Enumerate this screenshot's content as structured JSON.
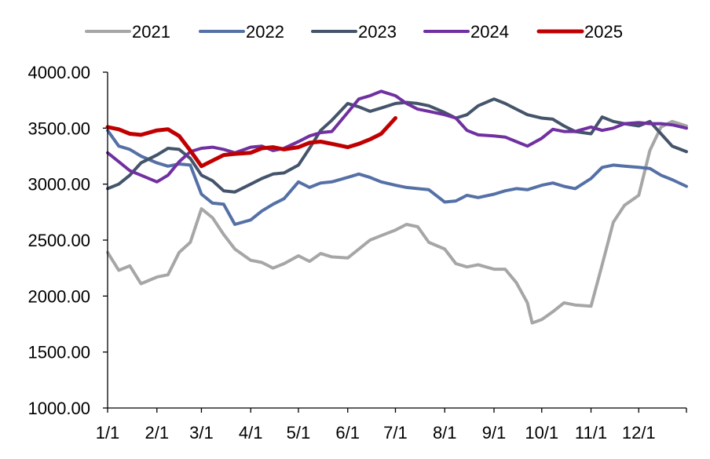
{
  "chart_data": {
    "type": "line",
    "title": "",
    "xlabel": "",
    "ylabel": "",
    "ylim": [
      1000,
      4000
    ],
    "yticks": [
      "1000.00",
      "1500.00",
      "2000.00",
      "2500.00",
      "3000.00",
      "3500.00",
      "4000.00"
    ],
    "xticks": [
      "1/1",
      "2/1",
      "3/1",
      "4/1",
      "5/1",
      "6/1",
      "7/1",
      "8/1",
      "9/1",
      "10/1",
      "11/1",
      "12/1"
    ],
    "grid": false,
    "legend_position": "top",
    "series": [
      {
        "name": "2021",
        "color": "#a6a6a6",
        "x": [
          "1/1",
          "1/8",
          "1/15",
          "1/22",
          "2/1",
          "2/8",
          "2/15",
          "2/22",
          "3/1",
          "3/8",
          "3/15",
          "3/22",
          "4/1",
          "4/8",
          "4/15",
          "4/22",
          "5/1",
          "5/8",
          "5/15",
          "5/22",
          "6/1",
          "6/8",
          "6/15",
          "6/22",
          "7/1",
          "7/8",
          "7/15",
          "7/22",
          "8/1",
          "8/8",
          "8/15",
          "8/22",
          "9/1",
          "9/8",
          "9/15",
          "9/22",
          "9/25",
          "10/1",
          "10/8",
          "10/15",
          "10/22",
          "11/1",
          "11/8",
          "11/15",
          "11/22",
          "12/1",
          "12/8",
          "12/15",
          "12/22",
          "12/31"
        ],
        "values": [
          2390,
          2230,
          2270,
          2110,
          2170,
          2190,
          2390,
          2480,
          2780,
          2700,
          2550,
          2420,
          2320,
          2300,
          2250,
          2290,
          2360,
          2310,
          2380,
          2350,
          2340,
          2420,
          2500,
          2540,
          2590,
          2640,
          2620,
          2480,
          2420,
          2290,
          2260,
          2280,
          2240,
          2240,
          2120,
          1940,
          1760,
          1790,
          1860,
          1940,
          1920,
          1910,
          2280,
          2660,
          2810,
          2900,
          3300,
          3510,
          3560,
          3520
        ]
      },
      {
        "name": "2022",
        "color": "#5470a6",
        "x": [
          "1/1",
          "1/8",
          "1/15",
          "1/22",
          "2/1",
          "2/8",
          "2/15",
          "2/22",
          "3/1",
          "3/8",
          "3/15",
          "3/22",
          "4/1",
          "4/8",
          "4/15",
          "4/22",
          "5/1",
          "5/8",
          "5/15",
          "5/22",
          "6/1",
          "6/8",
          "6/15",
          "6/22",
          "7/1",
          "7/8",
          "7/15",
          "7/22",
          "8/1",
          "8/8",
          "8/15",
          "8/22",
          "9/1",
          "9/8",
          "9/15",
          "9/22",
          "10/1",
          "10/8",
          "10/15",
          "10/22",
          "11/1",
          "11/8",
          "11/15",
          "11/22",
          "12/1",
          "12/8",
          "12/15",
          "12/22",
          "12/31"
        ],
        "values": [
          3480,
          3340,
          3310,
          3250,
          3190,
          3160,
          3180,
          3170,
          2910,
          2830,
          2820,
          2640,
          2680,
          2760,
          2820,
          2870,
          3020,
          2970,
          3010,
          3020,
          3060,
          3090,
          3060,
          3020,
          2990,
          2970,
          2960,
          2950,
          2840,
          2850,
          2900,
          2880,
          2910,
          2940,
          2960,
          2950,
          2990,
          3010,
          2980,
          2960,
          3050,
          3150,
          3170,
          3160,
          3150,
          3140,
          3080,
          3040,
          2980
        ]
      },
      {
        "name": "2023",
        "color": "#44546a",
        "x": [
          "1/1",
          "1/8",
          "1/15",
          "1/22",
          "2/1",
          "2/8",
          "2/15",
          "2/22",
          "3/1",
          "3/8",
          "3/15",
          "3/22",
          "4/1",
          "4/8",
          "4/15",
          "4/22",
          "5/1",
          "5/8",
          "5/15",
          "5/22",
          "6/1",
          "6/8",
          "6/15",
          "6/22",
          "7/1",
          "7/8",
          "7/15",
          "7/22",
          "8/1",
          "8/8",
          "8/15",
          "8/22",
          "9/1",
          "9/8",
          "9/15",
          "9/22",
          "10/1",
          "10/8",
          "10/15",
          "10/22",
          "11/1",
          "11/8",
          "11/15",
          "11/22",
          "12/1",
          "12/8",
          "12/15",
          "12/22",
          "12/31"
        ],
        "values": [
          2960,
          3000,
          3080,
          3190,
          3260,
          3320,
          3310,
          3230,
          3080,
          3030,
          2940,
          2930,
          3000,
          3050,
          3090,
          3100,
          3170,
          3320,
          3480,
          3570,
          3720,
          3690,
          3650,
          3680,
          3720,
          3730,
          3720,
          3700,
          3640,
          3590,
          3620,
          3700,
          3760,
          3720,
          3670,
          3620,
          3590,
          3580,
          3520,
          3470,
          3450,
          3600,
          3560,
          3540,
          3520,
          3560,
          3450,
          3340,
          3290
        ]
      },
      {
        "name": "2024",
        "color": "#7030a0",
        "x": [
          "1/1",
          "1/8",
          "1/15",
          "1/22",
          "2/1",
          "2/8",
          "2/15",
          "2/22",
          "3/1",
          "3/8",
          "3/15",
          "3/22",
          "4/1",
          "4/8",
          "4/15",
          "4/22",
          "5/1",
          "5/8",
          "5/15",
          "5/22",
          "6/1",
          "6/8",
          "6/15",
          "6/22",
          "7/1",
          "7/8",
          "7/15",
          "7/22",
          "8/1",
          "8/8",
          "8/15",
          "8/22",
          "9/1",
          "9/8",
          "9/15",
          "9/22",
          "10/1",
          "10/8",
          "10/15",
          "10/22",
          "11/1",
          "11/8",
          "11/15",
          "11/22",
          "12/1",
          "12/8",
          "12/15",
          "12/22",
          "12/31"
        ],
        "values": [
          3280,
          3200,
          3120,
          3080,
          3020,
          3080,
          3200,
          3290,
          3320,
          3330,
          3310,
          3280,
          3330,
          3340,
          3300,
          3320,
          3380,
          3430,
          3460,
          3470,
          3640,
          3760,
          3790,
          3830,
          3790,
          3720,
          3670,
          3650,
          3620,
          3590,
          3480,
          3440,
          3430,
          3420,
          3380,
          3340,
          3410,
          3490,
          3470,
          3470,
          3510,
          3480,
          3500,
          3540,
          3550,
          3540,
          3540,
          3530,
          3500
        ]
      },
      {
        "name": "2025",
        "color": "#c00000",
        "x": [
          "1/1",
          "1/8",
          "1/15",
          "1/22",
          "2/1",
          "2/8",
          "2/15",
          "2/22",
          "3/1",
          "3/8",
          "3/15",
          "3/22",
          "4/1",
          "4/8",
          "4/15",
          "4/22",
          "5/1",
          "5/8",
          "5/15",
          "5/22",
          "6/1",
          "6/8",
          "6/15",
          "6/22",
          "7/1"
        ],
        "values": [
          3510,
          3490,
          3450,
          3440,
          3480,
          3490,
          3430,
          3300,
          3160,
          3210,
          3260,
          3270,
          3280,
          3320,
          3330,
          3310,
          3330,
          3370,
          3380,
          3360,
          3330,
          3360,
          3400,
          3450,
          3590
        ]
      }
    ]
  }
}
